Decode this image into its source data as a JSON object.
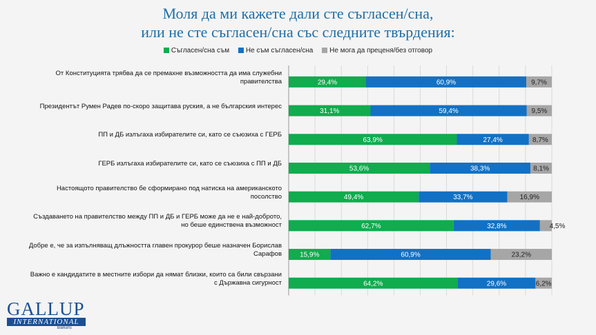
{
  "title": {
    "line1": "Моля да ми кажете дали сте съгласен/сна,",
    "line2": "или не сте съгласен/сна със следните твърдения:"
  },
  "legend": [
    {
      "label": "Съгласен/сна съм",
      "color": "#10ac4e"
    },
    {
      "label": "Не съм съгласен/сна",
      "color": "#1271c4"
    },
    {
      "label": "Не мога да преценя/без отговор",
      "color": "#a6a6a6"
    }
  ],
  "colors": {
    "agree": "#10ac4e",
    "disagree": "#1271c4",
    "na": "#a6a6a6"
  },
  "logo": {
    "name": "GALLUP",
    "sub": "INTERNATIONAL",
    "region": "Balkans"
  },
  "chart_data": {
    "type": "bar",
    "orientation": "horizontal",
    "stacked": "100%",
    "categories": [
      "От Конституцията трябва да се премахне възможността да има служебни правителства",
      "Президентът Румен Радев по-скоро защитава руския, а не българския интерес",
      "ПП и ДБ излъгаха избирателите си, като се съюзиха с ГЕРБ",
      "ГЕРБ излъгаха избирателите си, като се съюзиха с ПП и ДБ",
      "Настоящото правителство бе сформирано под натиска на американското посолство",
      "Създаването на правителство между ПП и ДБ и ГЕРБ може да не е най-доброто, но беше единствена възможност",
      "Добре е, че за изпълняващ длъжността главен прокурор беше назначен Борислав Сарафов",
      "Важно е кандидатите в местните избори да нямат близки, които са били свързани с Държавна сигурност"
    ],
    "series": [
      {
        "name": "Съгласен/сна съм",
        "values": [
          29.4,
          31.1,
          63.9,
          53.6,
          49.4,
          62.7,
          15.9,
          64.2
        ],
        "labels": [
          "29,4%",
          "31,1%",
          "63,9%",
          "53,6%",
          "49,4%",
          "62,7%",
          "15,9%",
          "64,2%"
        ]
      },
      {
        "name": "Не съм съгласен/сна",
        "values": [
          60.9,
          59.4,
          27.4,
          38.3,
          33.7,
          32.8,
          60.9,
          29.6
        ],
        "labels": [
          "60,9%",
          "59,4%",
          "27,4%",
          "38,3%",
          "33,7%",
          "32,8%",
          "60,9%",
          "29,6%"
        ]
      },
      {
        "name": "Не мога да преценя/без отговор",
        "values": [
          9.7,
          9.5,
          8.7,
          8.1,
          16.9,
          4.5,
          23.2,
          6.2
        ],
        "labels": [
          "9,7%",
          "9,5%",
          "8,7%",
          "8,1%",
          "16,9%",
          "4,5%",
          "23,2%",
          "6,2%"
        ]
      }
    ],
    "xlim": [
      0,
      100
    ],
    "grid": true
  }
}
